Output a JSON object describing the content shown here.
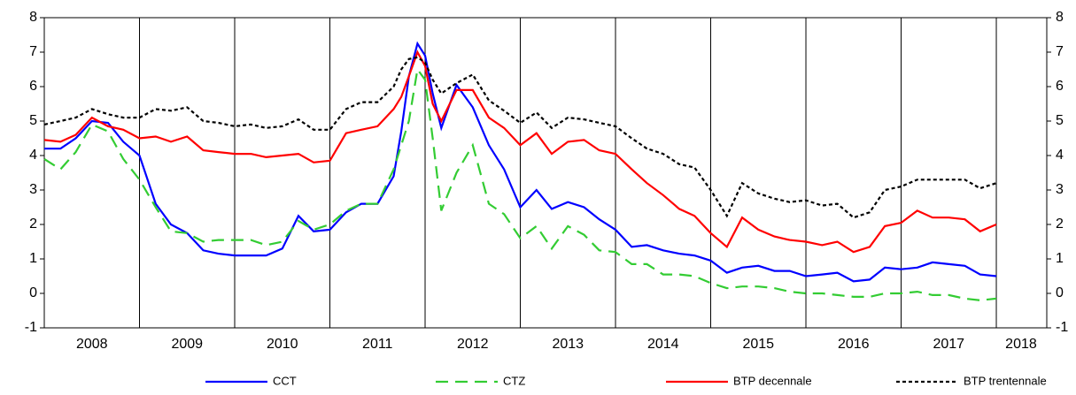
{
  "chart_data": {
    "type": "line",
    "x": [
      2008.0,
      2008.17,
      2008.33,
      2008.5,
      2008.67,
      2008.83,
      2009.0,
      2009.17,
      2009.33,
      2009.5,
      2009.67,
      2009.83,
      2010.0,
      2010.17,
      2010.33,
      2010.5,
      2010.67,
      2010.83,
      2011.0,
      2011.17,
      2011.33,
      2011.5,
      2011.67,
      2011.75,
      2011.83,
      2011.92,
      2012.0,
      2012.08,
      2012.17,
      2012.33,
      2012.5,
      2012.67,
      2012.83,
      2013.0,
      2013.17,
      2013.33,
      2013.5,
      2013.67,
      2013.83,
      2014.0,
      2014.17,
      2014.33,
      2014.5,
      2014.67,
      2014.83,
      2015.0,
      2015.17,
      2015.33,
      2015.5,
      2015.67,
      2015.83,
      2016.0,
      2016.17,
      2016.33,
      2016.5,
      2016.67,
      2016.83,
      2017.0,
      2017.17,
      2017.33,
      2017.5,
      2017.67,
      2017.83,
      2018.0
    ],
    "series": [
      {
        "name": "CCT",
        "color": "#0000ff",
        "dash": "none",
        "values": [
          4.2,
          4.2,
          4.5,
          5.0,
          4.95,
          4.4,
          4.0,
          2.6,
          2.0,
          1.75,
          1.25,
          1.15,
          1.1,
          1.1,
          1.1,
          1.3,
          2.25,
          1.8,
          1.85,
          2.35,
          2.6,
          2.6,
          3.4,
          4.7,
          6.3,
          7.25,
          6.9,
          5.8,
          4.8,
          6.05,
          5.4,
          4.3,
          3.6,
          2.5,
          3.0,
          2.45,
          2.65,
          2.5,
          2.15,
          1.85,
          1.35,
          1.4,
          1.25,
          1.15,
          1.1,
          0.95,
          0.6,
          0.75,
          0.8,
          0.65,
          0.65,
          0.5,
          0.55,
          0.6,
          0.35,
          0.4,
          0.75,
          0.7,
          0.75,
          0.9,
          0.85,
          0.8,
          0.55,
          0.5
        ]
      },
      {
        "name": "CTZ",
        "color": "#33cc33",
        "dash": "14 8",
        "values": [
          3.9,
          3.6,
          4.1,
          4.9,
          4.7,
          3.9,
          3.3,
          2.5,
          1.8,
          1.75,
          1.5,
          1.55,
          1.55,
          1.55,
          1.4,
          1.5,
          2.1,
          1.85,
          2.0,
          2.4,
          2.6,
          2.6,
          3.6,
          4.3,
          5.0,
          6.5,
          6.2,
          4.5,
          2.4,
          3.5,
          4.3,
          2.6,
          2.3,
          1.6,
          1.95,
          1.3,
          1.95,
          1.7,
          1.25,
          1.2,
          0.85,
          0.85,
          0.55,
          0.55,
          0.5,
          0.3,
          0.15,
          0.2,
          0.2,
          0.15,
          0.05,
          0.0,
          0.0,
          -0.05,
          -0.1,
          -0.1,
          0.0,
          0.0,
          0.05,
          -0.05,
          -0.05,
          -0.15,
          -0.2,
          -0.15
        ]
      },
      {
        "name": "BTP decennale",
        "color": "#ff0000",
        "dash": "none",
        "values": [
          4.45,
          4.4,
          4.6,
          5.1,
          4.85,
          4.75,
          4.5,
          4.55,
          4.4,
          4.55,
          4.15,
          4.1,
          4.05,
          4.05,
          3.95,
          4.0,
          4.05,
          3.8,
          3.85,
          4.65,
          4.75,
          4.85,
          5.35,
          5.7,
          6.3,
          7.0,
          6.6,
          5.5,
          5.0,
          5.9,
          5.9,
          5.1,
          4.8,
          4.3,
          4.65,
          4.05,
          4.4,
          4.45,
          4.15,
          4.05,
          3.6,
          3.2,
          2.85,
          2.45,
          2.25,
          1.75,
          1.35,
          2.2,
          1.85,
          1.65,
          1.55,
          1.5,
          1.4,
          1.5,
          1.2,
          1.35,
          1.95,
          2.05,
          2.4,
          2.2,
          2.2,
          2.15,
          1.8,
          2.0
        ]
      },
      {
        "name": "BTP trentennale",
        "color": "#000000",
        "dash": "4 3",
        "values": [
          4.9,
          5.0,
          5.1,
          5.35,
          5.2,
          5.1,
          5.1,
          5.35,
          5.3,
          5.4,
          5.0,
          4.95,
          4.85,
          4.9,
          4.8,
          4.85,
          5.05,
          4.75,
          4.75,
          5.35,
          5.55,
          5.55,
          6.0,
          6.5,
          6.8,
          6.85,
          6.7,
          6.2,
          5.8,
          6.1,
          6.35,
          5.6,
          5.3,
          4.95,
          5.25,
          4.8,
          5.1,
          5.05,
          4.95,
          4.85,
          4.5,
          4.2,
          4.05,
          3.75,
          3.65,
          3.0,
          2.25,
          3.2,
          2.9,
          2.75,
          2.65,
          2.7,
          2.55,
          2.6,
          2.2,
          2.35,
          3.0,
          3.1,
          3.3,
          3.3,
          3.3,
          3.3,
          3.05,
          3.2
        ]
      }
    ],
    "xlim": [
      2008,
      2018.53
    ],
    "xticks": [
      {
        "value": 2008.5,
        "label": "2008"
      },
      {
        "value": 2009.5,
        "label": "2009"
      },
      {
        "value": 2010.5,
        "label": "2010"
      },
      {
        "value": 2011.5,
        "label": "2011"
      },
      {
        "value": 2012.5,
        "label": "2012"
      },
      {
        "value": 2013.5,
        "label": "2013"
      },
      {
        "value": 2014.5,
        "label": "2014"
      },
      {
        "value": 2015.5,
        "label": "2015"
      },
      {
        "value": 2016.5,
        "label": "2016"
      },
      {
        "value": 2017.5,
        "label": "2017"
      },
      {
        "value": 2018.26,
        "label": "2018"
      }
    ],
    "xgrid": [
      2009,
      2010,
      2011,
      2012,
      2013,
      2014,
      2015,
      2016,
      2017,
      2018
    ],
    "ylim": [
      -1,
      8
    ],
    "yticks": [
      -1,
      0,
      1,
      2,
      3,
      4,
      5,
      6,
      7,
      8
    ],
    "y2lim": [
      -1,
      8
    ],
    "y2ticks": [
      -1,
      0,
      1,
      2,
      3,
      4,
      5,
      6,
      7,
      8
    ],
    "legend": "bottom"
  }
}
